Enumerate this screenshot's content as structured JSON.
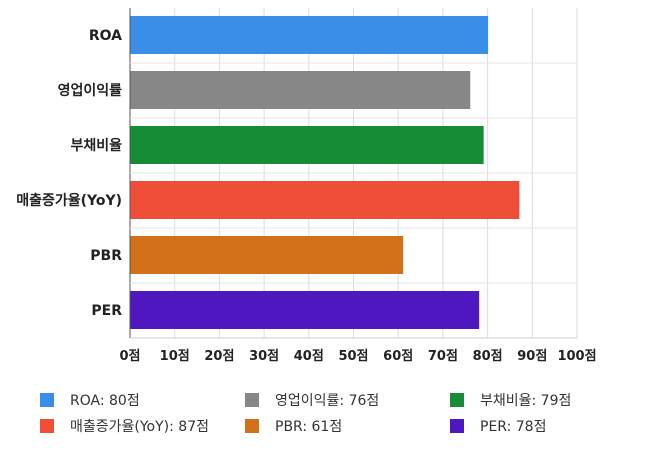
{
  "chart_data": {
    "type": "bar",
    "orientation": "horizontal",
    "categories": [
      "ROA",
      "영업이익률",
      "부채비율",
      "매출증가율(YoY)",
      "PBR",
      "PER"
    ],
    "values": [
      80,
      76,
      79,
      87,
      61,
      78
    ],
    "colors": [
      "#3b8ee8",
      "#878787",
      "#168c36",
      "#f04e36",
      "#d3711a",
      "#4e17c0"
    ],
    "xlim": [
      0,
      100
    ],
    "xticks": [
      "0점",
      "10점",
      "20점",
      "30점",
      "40점",
      "50점",
      "60점",
      "70점",
      "80점",
      "90점",
      "100점"
    ],
    "grid": true,
    "legend_position": "bottom",
    "legend": [
      "ROA: 80점",
      "영업이익률: 76점",
      "부채비율: 79점",
      "매출증가율(YoY): 87점",
      "PBR: 61점",
      "PER: 78점"
    ]
  }
}
